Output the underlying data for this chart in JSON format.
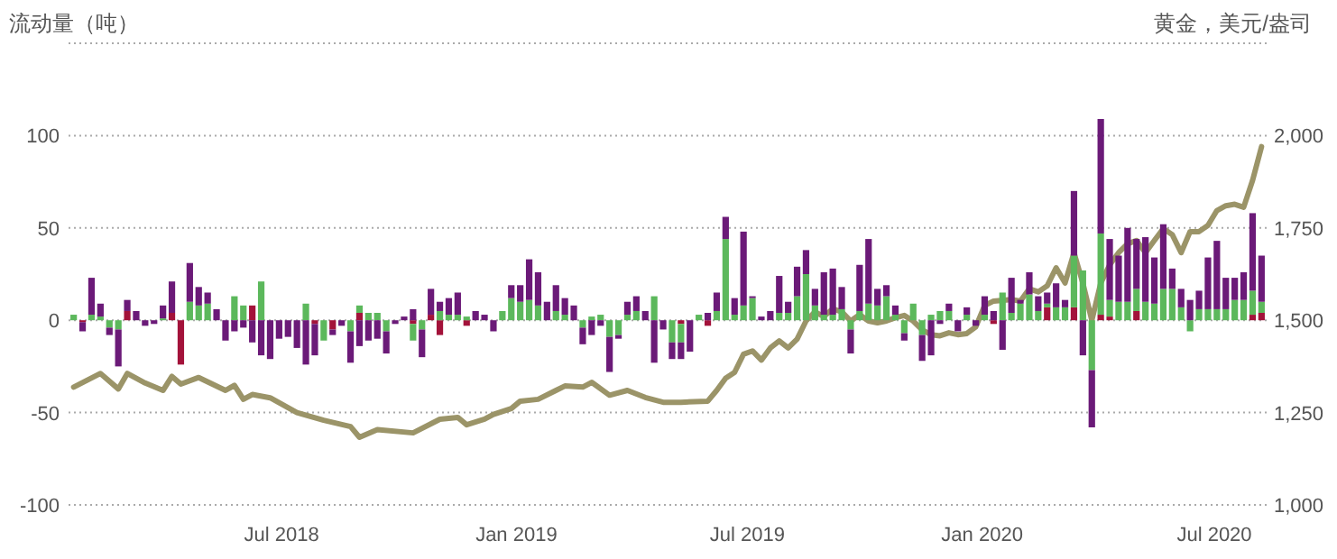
{
  "chart_data": {
    "type": "bar",
    "stacked": true,
    "ylabel": "流动量（吨）",
    "y2label": "黄金，美元/盎司",
    "grid": "y",
    "xlim": [
      "2018-01-15",
      "2020-08-11"
    ],
    "ylim": [
      -100,
      150
    ],
    "y2lim": [
      1000,
      2250
    ],
    "yticks": [
      -100,
      -50,
      0,
      50,
      100,
      {
        "value": 150,
        "label": null
      }
    ],
    "y2ticks": [
      {
        "value": 1000,
        "label": "1,000"
      },
      {
        "value": 1250,
        "label": "1,250"
      },
      {
        "value": 1500,
        "label": "1,500"
      },
      {
        "value": 1750,
        "label": "1,750"
      },
      {
        "value": 2000,
        "label": "2,000"
      }
    ],
    "xticks": [
      {
        "value": "2018-07-01",
        "label": "Jul 2018"
      },
      {
        "value": "2019-01-01",
        "label": "Jan 2019"
      },
      {
        "value": "2019-07-01",
        "label": "Jul 2019"
      },
      {
        "value": "2020-01-01",
        "label": "Jan 2020"
      },
      {
        "value": "2020-07-01",
        "label": "Jul 2020"
      }
    ],
    "x": [
      "2018-01-19",
      "2018-01-26",
      "2018-02-02",
      "2018-02-09",
      "2018-02-16",
      "2018-02-23",
      "2018-03-02",
      "2018-03-09",
      "2018-03-16",
      "2018-03-23",
      "2018-03-30",
      "2018-04-06",
      "2018-04-13",
      "2018-04-20",
      "2018-04-27",
      "2018-05-04",
      "2018-05-11",
      "2018-05-18",
      "2018-05-25",
      "2018-06-01",
      "2018-06-08",
      "2018-06-15",
      "2018-06-22",
      "2018-06-29",
      "2018-07-06",
      "2018-07-13",
      "2018-07-20",
      "2018-07-27",
      "2018-08-03",
      "2018-08-10",
      "2018-08-17",
      "2018-08-24",
      "2018-08-31",
      "2018-09-07",
      "2018-09-14",
      "2018-09-21",
      "2018-09-28",
      "2018-10-05",
      "2018-10-12",
      "2018-10-19",
      "2018-10-26",
      "2018-11-02",
      "2018-11-09",
      "2018-11-16",
      "2018-11-23",
      "2018-11-30",
      "2018-12-07",
      "2018-12-14",
      "2018-12-21",
      "2018-12-28",
      "2019-01-04",
      "2019-01-11",
      "2019-01-18",
      "2019-01-25",
      "2019-02-01",
      "2019-02-08",
      "2019-02-15",
      "2019-02-22",
      "2019-03-01",
      "2019-03-08",
      "2019-03-15",
      "2019-03-22",
      "2019-03-29",
      "2019-04-05",
      "2019-04-12",
      "2019-04-19",
      "2019-04-26",
      "2019-05-03",
      "2019-05-10",
      "2019-05-17",
      "2019-05-24",
      "2019-05-31",
      "2019-06-07",
      "2019-06-14",
      "2019-06-21",
      "2019-06-28",
      "2019-07-05",
      "2019-07-12",
      "2019-07-19",
      "2019-07-26",
      "2019-08-02",
      "2019-08-09",
      "2019-08-16",
      "2019-08-23",
      "2019-08-30",
      "2019-09-06",
      "2019-09-13",
      "2019-09-20",
      "2019-09-27",
      "2019-10-04",
      "2019-10-11",
      "2019-10-18",
      "2019-10-25",
      "2019-11-01",
      "2019-11-08",
      "2019-11-15",
      "2019-11-22",
      "2019-11-29",
      "2019-12-06",
      "2019-12-13",
      "2019-12-20",
      "2019-12-27",
      "2020-01-03",
      "2020-01-10",
      "2020-01-17",
      "2020-01-24",
      "2020-01-31",
      "2020-02-07",
      "2020-02-14",
      "2020-02-21",
      "2020-02-28",
      "2020-03-06",
      "2020-03-13",
      "2020-03-20",
      "2020-03-27",
      "2020-04-03",
      "2020-04-10",
      "2020-04-17",
      "2020-04-24",
      "2020-05-01",
      "2020-05-08",
      "2020-05-15",
      "2020-05-22",
      "2020-05-29",
      "2020-06-05",
      "2020-06-12",
      "2020-06-19",
      "2020-06-26",
      "2020-07-03",
      "2020-07-10",
      "2020-07-17",
      "2020-07-24",
      "2020-07-31",
      "2020-08-07"
    ],
    "series": [
      {
        "color": "#a3123a",
        "values": [
          0,
          -1,
          0,
          0,
          0,
          0,
          5,
          0,
          0,
          0,
          0,
          4,
          -24,
          0,
          0,
          0,
          0,
          0,
          0,
          0,
          8,
          0,
          0,
          0,
          0,
          0,
          0,
          -2,
          0,
          -5,
          0,
          0,
          4,
          0,
          0,
          0,
          0,
          0,
          -2,
          0,
          3,
          -8,
          0,
          0,
          -3,
          0,
          0,
          0,
          0,
          0,
          0,
          0,
          0,
          0,
          0,
          0,
          0,
          0,
          0,
          0,
          0,
          0,
          0,
          0,
          0,
          0,
          0,
          0,
          -2,
          0,
          0,
          -3,
          0,
          0,
          0,
          0,
          0,
          0,
          0,
          0,
          0,
          0,
          0,
          0,
          0,
          0,
          0,
          0,
          0,
          0,
          0,
          0,
          0,
          0,
          0,
          0,
          0,
          0,
          0,
          0,
          0,
          0,
          0,
          -2,
          0,
          0,
          0,
          0,
          0,
          7,
          0,
          0,
          7,
          0,
          0,
          3,
          2,
          0,
          0,
          5,
          0,
          0,
          0,
          0,
          0,
          0,
          0,
          0,
          0,
          0,
          0,
          0,
          3,
          4
        ]
      },
      {
        "color": "#5cb85c",
        "values": [
          3,
          0,
          3,
          2,
          -4,
          -5,
          0,
          0,
          0,
          0,
          1,
          0,
          0,
          10,
          8,
          9,
          0,
          0,
          13,
          8,
          0,
          21,
          0,
          0,
          0,
          0,
          9,
          0,
          -11,
          0,
          0,
          -6,
          4,
          4,
          4,
          -6,
          0,
          0,
          -9,
          -5,
          0,
          5,
          3,
          3,
          2,
          0,
          0,
          0,
          5,
          12,
          10,
          11,
          8,
          0,
          5,
          3,
          0,
          -4,
          2,
          3,
          -9,
          -8,
          3,
          5,
          0,
          13,
          0,
          -12,
          -10,
          0,
          3,
          0,
          5,
          44,
          3,
          8,
          12,
          0,
          0,
          4,
          4,
          13,
          25,
          8,
          3,
          3,
          6,
          -5,
          5,
          9,
          8,
          13,
          3,
          -7,
          9,
          -8,
          3,
          5,
          5,
          0,
          3,
          0,
          3,
          0,
          15,
          4,
          9,
          14,
          5,
          2,
          7,
          7,
          28,
          27,
          -27,
          44,
          9,
          10,
          10,
          12,
          10,
          9,
          17,
          17,
          7,
          -6,
          6,
          6,
          6,
          6,
          11,
          11,
          13,
          6
        ]
      },
      {
        "color": "#6b1a78",
        "values": [
          0,
          -5,
          20,
          7,
          -4,
          -20,
          6,
          5,
          -3,
          -2,
          7,
          17,
          0,
          21,
          10,
          6,
          6,
          -11,
          -6,
          -4,
          -12,
          -19,
          -21,
          -10,
          -9,
          -15,
          -24,
          -17,
          0,
          -3,
          -3,
          -17,
          -14,
          -11,
          -10,
          -12,
          -2,
          2,
          6,
          -15,
          14,
          5,
          9,
          12,
          0,
          5,
          3,
          -6,
          0,
          7,
          9,
          22,
          18,
          10,
          14,
          9,
          8,
          -9,
          -8,
          -3,
          -19,
          -2,
          7,
          8,
          5,
          -23,
          -5,
          -9,
          -9,
          -17,
          0,
          4,
          10,
          12,
          9,
          40,
          1,
          2,
          5,
          20,
          6,
          16,
          13,
          9,
          23,
          25,
          12,
          -13,
          25,
          35,
          9,
          6,
          5,
          -4,
          0,
          -14,
          -19,
          -2,
          4,
          -6,
          4,
          -3,
          10,
          5,
          -16,
          19,
          2,
          12,
          8,
          6,
          13,
          4,
          35,
          -19,
          -31,
          62,
          33,
          25,
          40,
          27,
          35,
          25,
          35,
          11,
          10,
          11,
          10,
          28,
          37,
          17,
          12,
          15,
          42,
          25
        ]
      },
      {
        "type": "line",
        "axis": "y2",
        "color": "#9b9468",
        "x": [
          "2018-01-19",
          "2018-02-09",
          "2018-02-23",
          "2018-03-02",
          "2018-03-16",
          "2018-03-30",
          "2018-04-06",
          "2018-04-13",
          "2018-04-27",
          "2018-05-18",
          "2018-05-25",
          "2018-06-01",
          "2018-06-08",
          "2018-06-22",
          "2018-07-13",
          "2018-08-03",
          "2018-08-24",
          "2018-08-31",
          "2018-09-14",
          "2018-10-12",
          "2018-11-02",
          "2018-11-16",
          "2018-11-23",
          "2018-12-07",
          "2018-12-14",
          "2018-12-28",
          "2019-01-04",
          "2019-01-18",
          "2019-02-01",
          "2019-02-08",
          "2019-02-22",
          "2019-03-01",
          "2019-03-15",
          "2019-03-29",
          "2019-04-12",
          "2019-04-26",
          "2019-05-10",
          "2019-05-31",
          "2019-06-07",
          "2019-06-14",
          "2019-06-21",
          "2019-06-28",
          "2019-07-05",
          "2019-07-12",
          "2019-07-19",
          "2019-07-26",
          "2019-08-02",
          "2019-08-09",
          "2019-08-16",
          "2019-08-23",
          "2019-08-30",
          "2019-09-06",
          "2019-09-13",
          "2019-09-20",
          "2019-09-27",
          "2019-10-04",
          "2019-10-11",
          "2019-10-18",
          "2019-10-25",
          "2019-11-01",
          "2019-11-08",
          "2019-11-15",
          "2019-11-22",
          "2019-11-29",
          "2019-12-06",
          "2019-12-13",
          "2019-12-20",
          "2019-12-27",
          "2020-01-03",
          "2020-01-10",
          "2020-01-24",
          "2020-01-31",
          "2020-02-07",
          "2020-02-14",
          "2020-02-21",
          "2020-02-28",
          "2020-03-06",
          "2020-03-13",
          "2020-03-20",
          "2020-03-27",
          "2020-04-03",
          "2020-04-10",
          "2020-04-17",
          "2020-04-24",
          "2020-05-01",
          "2020-05-08",
          "2020-05-15",
          "2020-05-22",
          "2020-05-29",
          "2020-06-05",
          "2020-06-12",
          "2020-06-19",
          "2020-06-26",
          "2020-07-03",
          "2020-07-10",
          "2020-07-17",
          "2020-07-24",
          "2020-07-31",
          "2020-08-07"
        ],
        "values": [
          1319,
          1356,
          1314,
          1356,
          1330,
          1310,
          1348,
          1327,
          1345,
          1310,
          1324,
          1286,
          1299,
          1290,
          1250,
          1229,
          1212,
          1183,
          1204,
          1195,
          1232,
          1237,
          1217,
          1232,
          1245,
          1261,
          1281,
          1286,
          1310,
          1322,
          1319,
          1332,
          1297,
          1310,
          1291,
          1278,
          1278,
          1281,
          1310,
          1343,
          1359,
          1408,
          1417,
          1392,
          1425,
          1444,
          1425,
          1449,
          1498,
          1523,
          1510,
          1531,
          1523,
          1498,
          1515,
          1498,
          1493,
          1498,
          1507,
          1513,
          1498,
          1474,
          1461,
          1458,
          1466,
          1461,
          1464,
          1482,
          1540,
          1552,
          1556,
          1552,
          1585,
          1577,
          1593,
          1642,
          1601,
          1683,
          1600,
          1500,
          1601,
          1650,
          1683,
          1707,
          1716,
          1683,
          1716,
          1748,
          1732,
          1683,
          1740,
          1740,
          1757,
          1797,
          1810,
          1814,
          1806,
          1879,
          1970
        ]
      }
    ]
  }
}
